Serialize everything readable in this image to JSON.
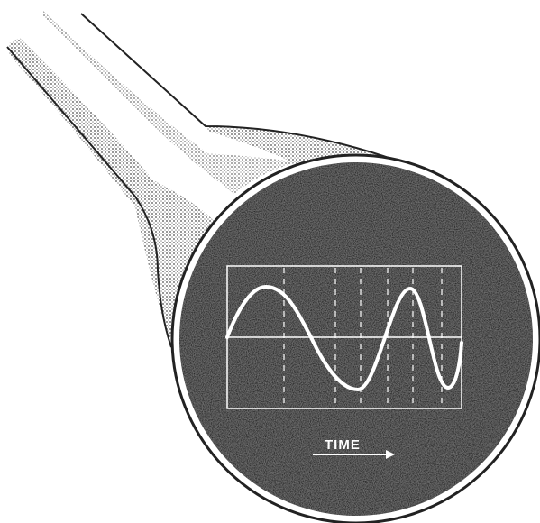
{
  "label": "TIME"
}
